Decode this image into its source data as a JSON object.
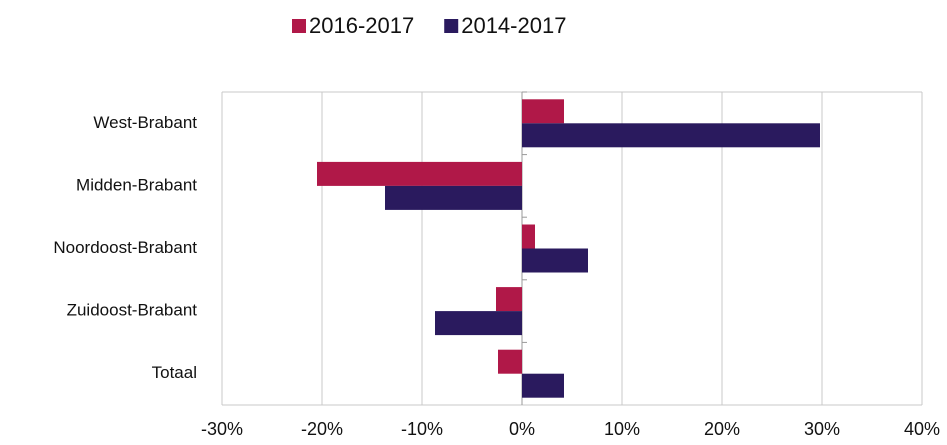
{
  "chart_data": {
    "type": "hbar",
    "categories": [
      "West-Brabant",
      "Midden-Brabant",
      "Noordoost-Brabant",
      "Zuidoost-Brabant",
      "Totaal"
    ],
    "series": [
      {
        "name": "2016-2017",
        "color": "#b01848",
        "values": [
          4.2,
          -20.5,
          1.3,
          -2.6,
          -2.4
        ]
      },
      {
        "name": "2014-2017",
        "color": "#2a1a5e",
        "values": [
          29.8,
          -13.7,
          6.6,
          -8.7,
          4.2
        ]
      }
    ],
    "xlim": [
      -30,
      40
    ],
    "xticks": [
      {
        "value": -30,
        "label": "-30%"
      },
      {
        "value": -20,
        "label": "-20%"
      },
      {
        "value": -10,
        "label": "-10%"
      },
      {
        "value": 0,
        "label": "0%"
      },
      {
        "value": 10,
        "label": "10%"
      },
      {
        "value": 20,
        "label": "20%"
      },
      {
        "value": 30,
        "label": "30%"
      },
      {
        "value": 40,
        "label": "40%"
      }
    ],
    "grid": true,
    "legend": "top"
  }
}
